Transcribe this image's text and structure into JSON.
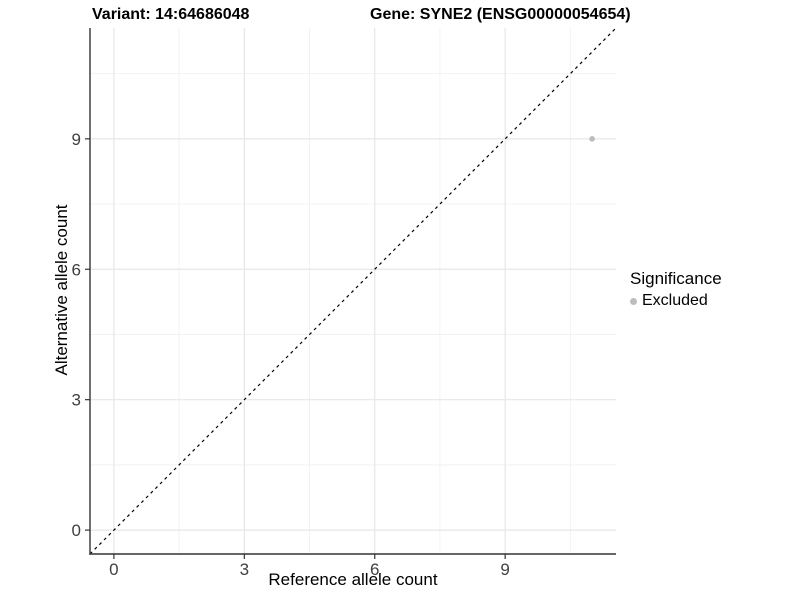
{
  "chart_data": {
    "type": "scatter",
    "titles": [
      "Variant: 14:64686048",
      "Gene: SYNE2 (ENSG00000054654)"
    ],
    "xlabel": "Reference allele count",
    "ylabel": "Alternative allele count",
    "xlim": [
      -0.55,
      11.55
    ],
    "ylim": [
      -0.55,
      11.55
    ],
    "xticks": [
      0,
      3,
      6,
      9
    ],
    "yticks": [
      0,
      3,
      6,
      9
    ],
    "x_minor_gridlines": [
      1.5,
      4.5,
      7.5,
      10.5
    ],
    "y_minor_gridlines": [
      1.5,
      4.5,
      7.5,
      10.5
    ],
    "grid": true,
    "points": [
      {
        "x": 11,
        "y": 9,
        "series": "Excluded"
      }
    ],
    "identity_line": {
      "x1": -0.55,
      "y1": -0.55,
      "x2": 11.55,
      "y2": 11.55,
      "style": "dashed"
    },
    "legend": {
      "title": "Significance",
      "position": "right",
      "items": [
        {
          "label": "Excluded",
          "color": "#bdbdbd"
        }
      ]
    },
    "colors": {
      "point": "#bdbdbd",
      "axis_line": "#333333",
      "tick_mark": "#333333",
      "tick_label": "#404040",
      "grid_major": "#e7e7e7",
      "grid_minor": "#f1f1f1",
      "identity_line": "#000000",
      "background": "#ffffff"
    }
  }
}
